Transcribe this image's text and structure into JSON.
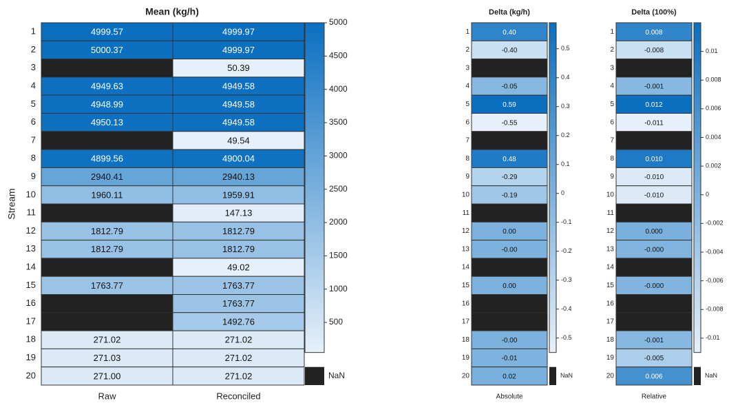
{
  "chart_data": [
    {
      "type": "heatmap",
      "title": "Mean (kg/h)",
      "ylabel": "Stream",
      "categories": [
        "Raw",
        "Reconciled"
      ],
      "rows": [
        1,
        2,
        3,
        4,
        5,
        6,
        7,
        8,
        9,
        10,
        11,
        12,
        13,
        14,
        15,
        16,
        17,
        18,
        19,
        20
      ],
      "values": [
        [
          4999.57,
          4999.97
        ],
        [
          5000.37,
          4999.97
        ],
        [
          null,
          50.39
        ],
        [
          4949.63,
          4949.58
        ],
        [
          4948.99,
          4949.58
        ],
        [
          4950.13,
          4949.58
        ],
        [
          null,
          49.54
        ],
        [
          4899.56,
          4900.04
        ],
        [
          2940.41,
          2940.13
        ],
        [
          1960.11,
          1959.91
        ],
        [
          null,
          147.13
        ],
        [
          1812.79,
          1812.79
        ],
        [
          1812.79,
          1812.79
        ],
        [
          null,
          49.02
        ],
        [
          1763.77,
          1763.77
        ],
        [
          null,
          1763.77
        ],
        [
          null,
          1492.76
        ],
        [
          271.02,
          271.02
        ],
        [
          271.03,
          271.02
        ],
        [
          271.0,
          271.02
        ]
      ],
      "value_labels": [
        [
          "4999.57",
          "4999.97"
        ],
        [
          "5000.37",
          "4999.97"
        ],
        [
          null,
          "50.39"
        ],
        [
          "4949.63",
          "4949.58"
        ],
        [
          "4948.99",
          "4949.58"
        ],
        [
          "4950.13",
          "4949.58"
        ],
        [
          null,
          "49.54"
        ],
        [
          "4899.56",
          "4900.04"
        ],
        [
          "2940.41",
          "2940.13"
        ],
        [
          "1960.11",
          "1959.91"
        ],
        [
          null,
          "147.13"
        ],
        [
          "1812.79",
          "1812.79"
        ],
        [
          "1812.79",
          "1812.79"
        ],
        [
          null,
          "49.02"
        ],
        [
          "1763.77",
          "1763.77"
        ],
        [
          null,
          "1763.77"
        ],
        [
          null,
          "1492.76"
        ],
        [
          "271.02",
          "271.02"
        ],
        [
          "271.03",
          "271.02"
        ],
        [
          "271.00",
          "271.02"
        ]
      ],
      "clim": [
        49.02,
        5000.37
      ],
      "cticks": [
        500,
        1000,
        1500,
        2000,
        2500,
        3000,
        3500,
        4000,
        4500,
        5000
      ],
      "colormap": [
        "#e6f0fa",
        "#0b6fc0"
      ],
      "nan_color": "#222222",
      "nan_label": "NaN"
    },
    {
      "type": "heatmap",
      "title": "Delta (kg/h)",
      "categories": [
        "Absolute"
      ],
      "rows": [
        1,
        2,
        3,
        4,
        5,
        6,
        7,
        8,
        9,
        10,
        11,
        12,
        13,
        14,
        15,
        16,
        17,
        18,
        19,
        20
      ],
      "values": [
        [
          0.4
        ],
        [
          -0.4
        ],
        [
          null
        ],
        [
          -0.05
        ],
        [
          0.59
        ],
        [
          -0.55
        ],
        [
          null
        ],
        [
          0.48
        ],
        [
          -0.29
        ],
        [
          -0.19
        ],
        [
          null
        ],
        [
          0.004
        ],
        [
          -0.004
        ],
        [
          null
        ],
        [
          0.004
        ],
        [
          null
        ],
        [
          null
        ],
        [
          -0.004
        ],
        [
          -0.01
        ],
        [
          0.02
        ]
      ],
      "value_labels": [
        [
          "0.40"
        ],
        [
          "-0.40"
        ],
        [
          null
        ],
        [
          "-0.05"
        ],
        [
          "0.59"
        ],
        [
          "-0.55"
        ],
        [
          null
        ],
        [
          "0.48"
        ],
        [
          "-0.29"
        ],
        [
          "-0.19"
        ],
        [
          null
        ],
        [
          "0.00"
        ],
        [
          "-0.00"
        ],
        [
          null
        ],
        [
          "0.00"
        ],
        [
          null
        ],
        [
          null
        ],
        [
          "-0.00"
        ],
        [
          "-0.01"
        ],
        [
          "0.02"
        ]
      ],
      "clim": [
        -0.55,
        0.59
      ],
      "cticks": [
        -0.5,
        -0.4,
        -0.3,
        -0.2,
        -0.1,
        0,
        0.1,
        0.2,
        0.3,
        0.4,
        0.5
      ],
      "colormap": [
        "#e6f0fa",
        "#0b6fc0"
      ],
      "nan_color": "#222222",
      "nan_label": "NaN"
    },
    {
      "type": "heatmap",
      "title": "Delta (100%)",
      "categories": [
        "Relative"
      ],
      "rows": [
        1,
        2,
        3,
        4,
        5,
        6,
        7,
        8,
        9,
        10,
        11,
        12,
        13,
        14,
        15,
        16,
        17,
        18,
        19,
        20
      ],
      "values": [
        [
          0.008
        ],
        [
          -0.008
        ],
        [
          null
        ],
        [
          -0.001
        ],
        [
          0.012
        ],
        [
          -0.011
        ],
        [
          null
        ],
        [
          0.01
        ],
        [
          -0.01
        ],
        [
          -0.01
        ],
        [
          null
        ],
        [
          0.0004
        ],
        [
          -0.0004
        ],
        [
          null
        ],
        [
          -0.0004
        ],
        [
          null
        ],
        [
          null
        ],
        [
          -0.001
        ],
        [
          -0.005
        ],
        [
          0.006
        ]
      ],
      "value_labels": [
        [
          "0.008"
        ],
        [
          "-0.008"
        ],
        [
          null
        ],
        [
          "-0.001"
        ],
        [
          "0.012"
        ],
        [
          "-0.011"
        ],
        [
          null
        ],
        [
          "0.010"
        ],
        [
          "-0.010"
        ],
        [
          "-0.010"
        ],
        [
          null
        ],
        [
          "0.000"
        ],
        [
          "-0.000"
        ],
        [
          null
        ],
        [
          "-0.000"
        ],
        [
          null
        ],
        [
          null
        ],
        [
          "-0.001"
        ],
        [
          "-0.005"
        ],
        [
          "0.006"
        ]
      ],
      "clim": [
        -0.011,
        0.012
      ],
      "cticks": [
        -0.01,
        -0.008,
        -0.006,
        -0.004,
        -0.002,
        0,
        0.002,
        0.004,
        0.006,
        0.008,
        0.01
      ],
      "colormap": [
        "#e6f0fa",
        "#0b6fc0"
      ],
      "nan_color": "#222222",
      "nan_label": "NaN"
    }
  ]
}
